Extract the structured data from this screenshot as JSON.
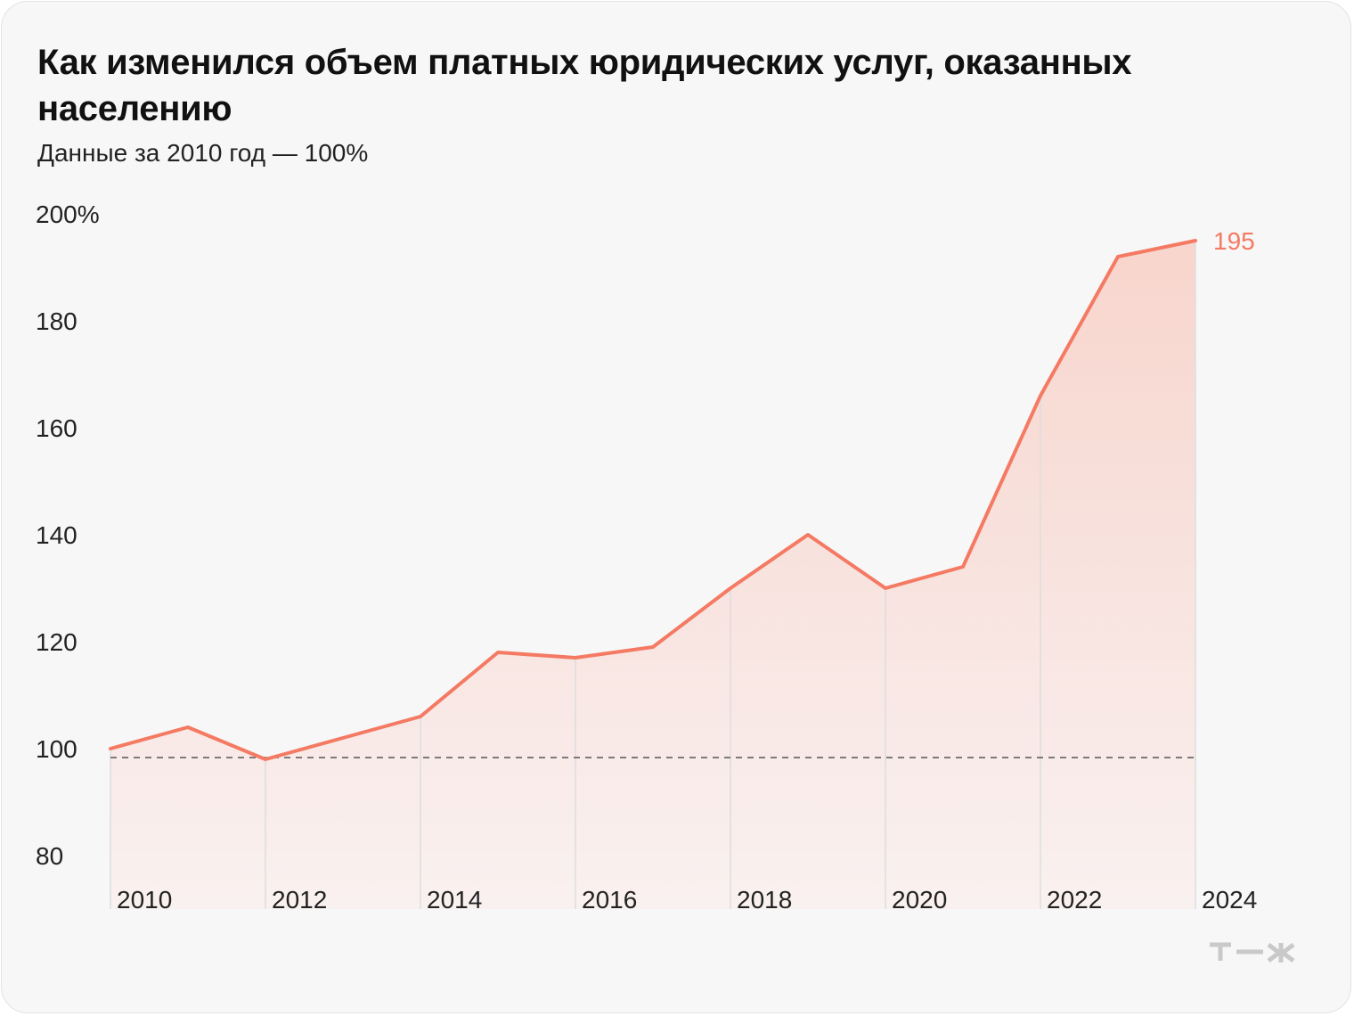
{
  "title": "Как изменился объем платных юридических услуг, оказанных населению",
  "subtitle": "Данные за 2010 год — 100%",
  "logo_text": "т—ж",
  "colors": {
    "card_background": "#f7f7f7",
    "line": "#f47a63",
    "area_top": "#f8d5cd",
    "area_bottom": "#f9f1f0",
    "baseline": "#555555",
    "gridline": "#dddddd",
    "text": "#111111",
    "logo": "#c9c9c9"
  },
  "chart_data": {
    "type": "area",
    "title": "Как изменился объем платных юридических услуг, оказанных населению",
    "subtitle": "Данные за 2010 год — 100%",
    "x": [
      2010,
      2011,
      2012,
      2013,
      2014,
      2015,
      2016,
      2017,
      2018,
      2019,
      2020,
      2021,
      2022,
      2023,
      2024
    ],
    "series": [
      {
        "values": [
          100,
          104,
          98,
          102,
          106,
          118,
          117,
          119,
          130,
          140,
          130,
          134,
          166,
          192,
          195
        ]
      }
    ],
    "end_label": "195",
    "reference_line": {
      "value": 100,
      "style": "dashed"
    },
    "ylim": [
      80,
      200
    ],
    "yticks": [
      {
        "value": 200,
        "label": "200%"
      },
      {
        "value": 180,
        "label": "180"
      },
      {
        "value": 160,
        "label": "160"
      },
      {
        "value": 140,
        "label": "140"
      },
      {
        "value": 120,
        "label": "120"
      },
      {
        "value": 100,
        "label": "100"
      },
      {
        "value": 80,
        "label": "80"
      }
    ],
    "xticks": [
      {
        "value": 2010,
        "label": "2010"
      },
      {
        "value": 2012,
        "label": "2012"
      },
      {
        "value": 2014,
        "label": "2014"
      },
      {
        "value": 2016,
        "label": "2016"
      },
      {
        "value": 2018,
        "label": "2018"
      },
      {
        "value": 2020,
        "label": "2020"
      },
      {
        "value": 2022,
        "label": "2022"
      },
      {
        "value": 2024,
        "label": "2024"
      }
    ],
    "xlabel": "",
    "ylabel": "",
    "grid": "vertical lines at labeled years",
    "legend": "none"
  }
}
